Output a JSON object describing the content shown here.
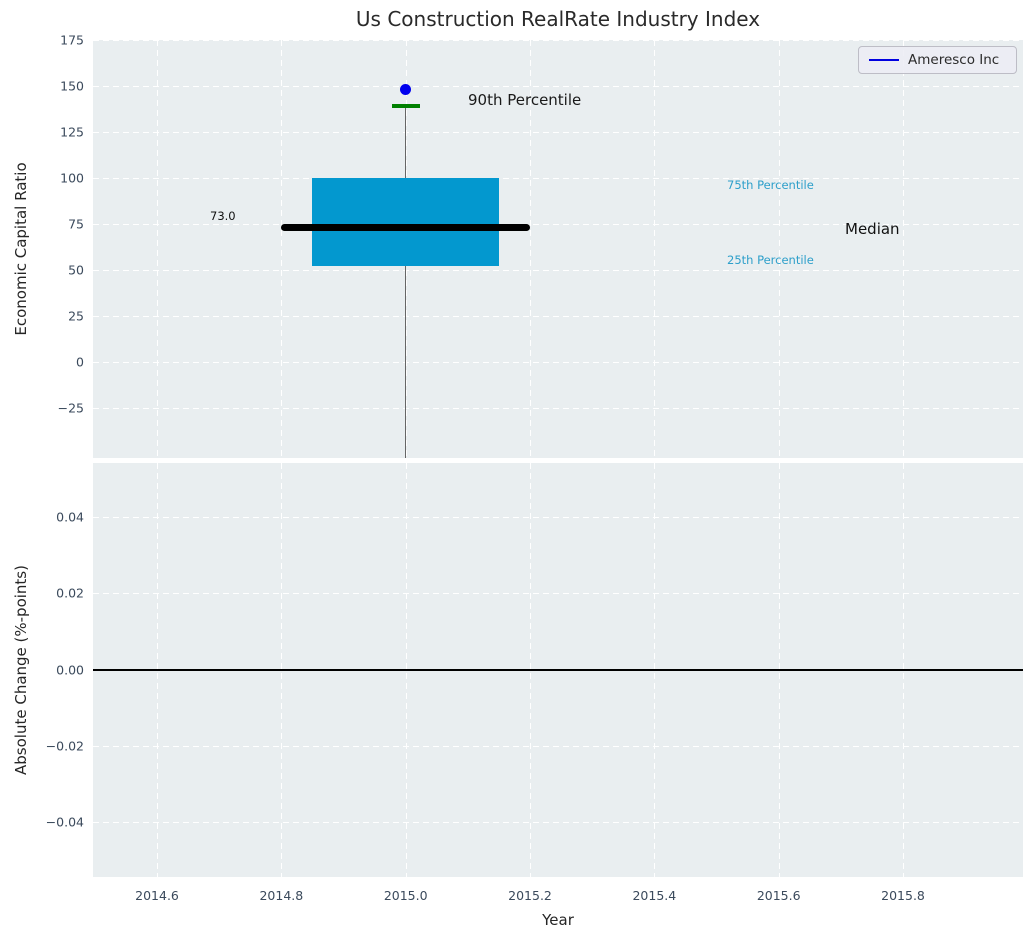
{
  "title": "Us Construction RealRate Industry Index",
  "legend": {
    "label": "Ameresco Inc"
  },
  "annotations": {
    "p90_label": "90th Percentile",
    "p75_label": "75th Percentile",
    "median_label": "Median",
    "p25_label": "25th Percentile",
    "median_value_label": "73.0"
  },
  "colors": {
    "plot_bg": "#e9eef0",
    "grid": "#ffffff",
    "tick_label": "#3b4a5c",
    "box_fill": "#0398cf",
    "median_line": "#000000",
    "whisker": "#666666",
    "p90_cap": "#008000",
    "company_point": "#0000ee",
    "legend_line": "#0000e0",
    "percentile_text": "#2d9fca",
    "zero_line": "#000000"
  },
  "x_axis": {
    "label": "Year",
    "xlim": [
      2014.497,
      2015.993
    ],
    "ticks": [
      {
        "v": 2014.6,
        "label": "2014.6"
      },
      {
        "v": 2014.8,
        "label": "2014.8"
      },
      {
        "v": 2015.0,
        "label": "2015.0"
      },
      {
        "v": 2015.2,
        "label": "2015.2"
      },
      {
        "v": 2015.4,
        "label": "2015.4"
      },
      {
        "v": 2015.6,
        "label": "2015.6"
      },
      {
        "v": 2015.8,
        "label": "2015.8"
      }
    ]
  },
  "chart_data": [
    {
      "type": "box",
      "panel": "top",
      "title": "Us Construction RealRate Industry Index",
      "ylabel": "Economic Capital Ratio",
      "ylim": [
        -52.2,
        175
      ],
      "grid": "dashed-white",
      "yticks": [
        {
          "v": 175,
          "label": "175"
        },
        {
          "v": 150,
          "label": "150"
        },
        {
          "v": 125,
          "label": "125"
        },
        {
          "v": 100,
          "label": "100"
        },
        {
          "v": 75,
          "label": "75"
        },
        {
          "v": 50,
          "label": "50"
        },
        {
          "v": 25,
          "label": "25"
        },
        {
          "v": 0,
          "label": "0"
        },
        {
          "v": -25,
          "label": "−25"
        }
      ],
      "boxplot": {
        "x": 2015.0,
        "q1": 52,
        "median": 73,
        "q3": 100,
        "p90": 139,
        "box_halfwidth": 0.15,
        "median_halfwidth": 0.2,
        "cap_halfwidth": 0.0225,
        "whisker_bottom_clipped": true
      },
      "series": [
        {
          "name": "Ameresco Inc",
          "x": 2015.0,
          "y": 148
        }
      ]
    },
    {
      "type": "line",
      "panel": "bottom",
      "ylabel": "Absolute Change (%-points)",
      "xlabel": "Year",
      "ylim": [
        -0.0544,
        0.0542
      ],
      "grid": "dashed-white",
      "yticks": [
        {
          "v": 0.04,
          "label": "0.04"
        },
        {
          "v": 0.02,
          "label": "0.02"
        },
        {
          "v": 0.0,
          "label": "0.00"
        },
        {
          "v": -0.02,
          "label": "−0.02"
        },
        {
          "v": -0.04,
          "label": "−0.04"
        }
      ],
      "hline": 0.0
    }
  ]
}
